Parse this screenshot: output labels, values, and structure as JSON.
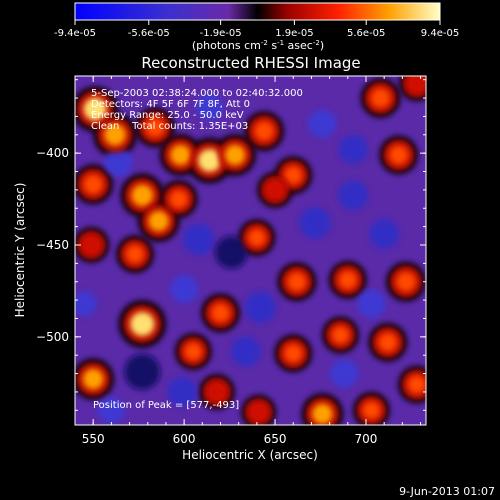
{
  "chart_data": {
    "type": "heatmap",
    "title": "Reconstructed RHESSI Image",
    "xlabel": "Heliocentric X (arcsec)",
    "ylabel": "Heliocentric Y (arcsec)",
    "xlim": [
      540,
      733
    ],
    "ylim": [
      -548,
      -358
    ],
    "x_ticks": [
      550,
      600,
      650,
      700
    ],
    "y_ticks": [
      -400,
      -450,
      -500
    ],
    "colorbar": {
      "colormap": "hot-blue diverging",
      "tick_labels": [
        "-9.4e-05",
        "-5.6e-05",
        "-1.9e-05",
        "1.9e-05",
        "5.6e-05",
        "9.4e-05"
      ],
      "range": [
        -9.4e-05,
        9.4e-05
      ],
      "unit_prefix": "(photons cm",
      "unit_sup1": "-2",
      "unit_mid": " s",
      "unit_sup2": "-1",
      "unit_mid2": " asec",
      "unit_sup3": "-2",
      "unit_suffix": ")"
    },
    "annotations": [
      "5-Sep-2003 02:38:24.000 to 02:40:32.000",
      "Detectors: 4F 5F 6F 7F 8F, Att 0",
      "Energy Range: 25.0 - 50.0 keV",
      "Clean    Total counts: 1.35E+03"
    ],
    "peak_label": "Position of Peak = [577,-493]",
    "peak": [
      577,
      -493
    ],
    "sources": [
      {
        "x": 551,
        "y": -376,
        "value": 0.9
      },
      {
        "x": 562,
        "y": -390,
        "value": 0.8
      },
      {
        "x": 584,
        "y": -386,
        "value": 0.6
      },
      {
        "x": 598,
        "y": -401,
        "value": 0.7
      },
      {
        "x": 614,
        "y": -404,
        "value": 0.9
      },
      {
        "x": 628,
        "y": -401,
        "value": 0.7
      },
      {
        "x": 644,
        "y": -388,
        "value": 0.6
      },
      {
        "x": 660,
        "y": -412,
        "value": 0.5
      },
      {
        "x": 708,
        "y": -370,
        "value": 0.6
      },
      {
        "x": 718,
        "y": -401,
        "value": 0.55
      },
      {
        "x": 728,
        "y": -362,
        "value": 0.4
      },
      {
        "x": 550,
        "y": -417,
        "value": 0.6
      },
      {
        "x": 577,
        "y": -423,
        "value": 0.8
      },
      {
        "x": 586,
        "y": -437,
        "value": 0.7
      },
      {
        "x": 597,
        "y": -425,
        "value": 0.5
      },
      {
        "x": 650,
        "y": -420,
        "value": 0.4
      },
      {
        "x": 549,
        "y": -450,
        "value": 0.4
      },
      {
        "x": 573,
        "y": -455,
        "value": 0.5
      },
      {
        "x": 640,
        "y": -446,
        "value": 0.45
      },
      {
        "x": 662,
        "y": -470,
        "value": 0.55
      },
      {
        "x": 690,
        "y": -469,
        "value": 0.5
      },
      {
        "x": 722,
        "y": -470,
        "value": 0.6
      },
      {
        "x": 577,
        "y": -493,
        "value": 1.0
      },
      {
        "x": 620,
        "y": -487,
        "value": 0.55
      },
      {
        "x": 605,
        "y": -508,
        "value": 0.45
      },
      {
        "x": 660,
        "y": -509,
        "value": 0.5
      },
      {
        "x": 686,
        "y": -499,
        "value": 0.45
      },
      {
        "x": 712,
        "y": -503,
        "value": 0.55
      },
      {
        "x": 728,
        "y": -526,
        "value": 0.5
      },
      {
        "x": 550,
        "y": -523,
        "value": 0.7
      },
      {
        "x": 618,
        "y": -530,
        "value": 0.4
      },
      {
        "x": 641,
        "y": -541,
        "value": 0.35
      },
      {
        "x": 676,
        "y": -542,
        "value": 0.7
      },
      {
        "x": 703,
        "y": -540,
        "value": 0.45
      },
      {
        "x": 564,
        "y": -405,
        "value": -0.5
      },
      {
        "x": 608,
        "y": -447,
        "value": -0.7
      },
      {
        "x": 626,
        "y": -454,
        "value": -0.8
      },
      {
        "x": 672,
        "y": -438,
        "value": -0.7
      },
      {
        "x": 693,
        "y": -423,
        "value": -0.6
      },
      {
        "x": 710,
        "y": -444,
        "value": -0.6
      },
      {
        "x": 676,
        "y": -384,
        "value": -0.5
      },
      {
        "x": 693,
        "y": -398,
        "value": -0.55
      },
      {
        "x": 614,
        "y": -375,
        "value": -0.4
      },
      {
        "x": 600,
        "y": -474,
        "value": -0.5
      },
      {
        "x": 642,
        "y": -484,
        "value": -0.7
      },
      {
        "x": 634,
        "y": -508,
        "value": -0.6
      },
      {
        "x": 688,
        "y": -520,
        "value": -0.5
      },
      {
        "x": 703,
        "y": -482,
        "value": -0.5
      },
      {
        "x": 577,
        "y": -519,
        "value": -1.0
      },
      {
        "x": 599,
        "y": -530,
        "value": -0.6
      },
      {
        "x": 560,
        "y": -540,
        "value": -0.4
      },
      {
        "x": 545,
        "y": -482,
        "value": -0.3
      }
    ]
  },
  "footer": {
    "date": "9-Jun-2013 01:07"
  }
}
